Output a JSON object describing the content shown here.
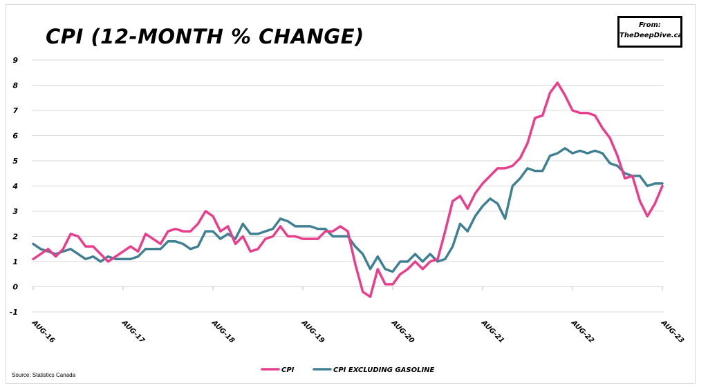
{
  "chart_data": {
    "type": "line",
    "title": "CPI (12-month % change)",
    "badge": {
      "line1": "From:",
      "line2": "TheDeepDive.ca"
    },
    "source": "Source: Statistics Canada",
    "xlabel": "",
    "ylabel": "",
    "ylim": [
      -1,
      9
    ],
    "yticks": [
      -1,
      0,
      1,
      2,
      3,
      4,
      5,
      6,
      7,
      8,
      9
    ],
    "xlim": [
      "Aug-16",
      "Aug-23"
    ],
    "xtick_labels": [
      "Aug-16",
      "Aug-17",
      "Aug-18",
      "Aug-19",
      "Aug-20",
      "Aug-21",
      "Aug-22",
      "Aug-23"
    ],
    "grid": "horizontal",
    "legend_position": "bottom-center",
    "colors": {
      "cpi": "#e83e8c",
      "cpi_ex_gas": "#3f8092"
    },
    "series": [
      {
        "name": "CPI",
        "values": [
          1.1,
          1.3,
          1.5,
          1.2,
          1.5,
          2.1,
          2.0,
          1.6,
          1.6,
          1.3,
          1.0,
          1.2,
          1.4,
          1.6,
          1.4,
          2.1,
          1.9,
          1.7,
          2.2,
          2.3,
          2.2,
          2.2,
          2.5,
          3.0,
          2.8,
          2.2,
          2.4,
          1.7,
          2.0,
          1.4,
          1.5,
          1.9,
          2.0,
          2.4,
          2.0,
          2.0,
          1.9,
          1.9,
          1.9,
          2.2,
          2.2,
          2.4,
          2.2,
          0.9,
          -0.2,
          -0.4,
          0.7,
          0.1,
          0.1,
          0.5,
          0.7,
          1.0,
          0.7,
          1.0,
          1.1,
          2.2,
          3.4,
          3.6,
          3.1,
          3.7,
          4.1,
          4.4,
          4.7,
          4.7,
          4.8,
          5.1,
          5.7,
          6.7,
          6.8,
          7.7,
          8.1,
          7.6,
          7.0,
          6.9,
          6.9,
          6.8,
          6.3,
          5.9,
          5.2,
          4.3,
          4.4,
          3.4,
          2.8,
          3.3,
          4.0
        ]
      },
      {
        "name": "CPI excluding gasoline",
        "values": [
          1.7,
          1.5,
          1.4,
          1.3,
          1.4,
          1.5,
          1.3,
          1.1,
          1.2,
          1.0,
          1.2,
          1.1,
          1.1,
          1.1,
          1.2,
          1.5,
          1.5,
          1.5,
          1.8,
          1.8,
          1.7,
          1.5,
          1.6,
          2.2,
          2.2,
          1.9,
          2.1,
          1.9,
          2.5,
          2.1,
          2.1,
          2.2,
          2.3,
          2.7,
          2.6,
          2.4,
          2.4,
          2.4,
          2.3,
          2.3,
          2.0,
          2.0,
          2.0,
          1.6,
          1.3,
          0.7,
          1.2,
          0.7,
          0.6,
          1.0,
          1.0,
          1.3,
          1.0,
          1.3,
          1.0,
          1.1,
          1.6,
          2.5,
          2.2,
          2.8,
          3.2,
          3.5,
          3.3,
          2.7,
          4.0,
          4.3,
          4.7,
          4.6,
          4.6,
          5.2,
          5.3,
          5.5,
          5.3,
          5.4,
          5.3,
          5.4,
          5.3,
          4.9,
          4.8,
          4.5,
          4.4,
          4.4,
          4.0,
          4.1,
          4.1
        ]
      }
    ]
  }
}
